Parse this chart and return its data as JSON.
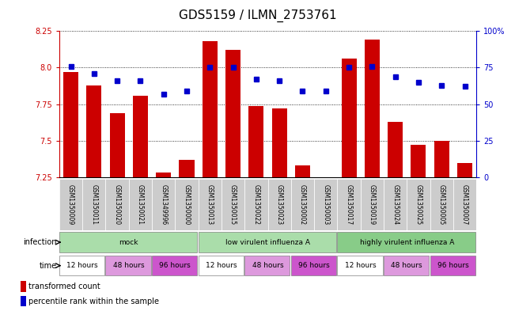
{
  "title": "GDS5159 / ILMN_2753761",
  "samples": [
    "GSM1350009",
    "GSM1350011",
    "GSM1350020",
    "GSM1350021",
    "GSM1349996",
    "GSM1350000",
    "GSM1350013",
    "GSM1350015",
    "GSM1350022",
    "GSM1350023",
    "GSM1350002",
    "GSM1350003",
    "GSM1350017",
    "GSM1350019",
    "GSM1350024",
    "GSM1350025",
    "GSM1350005",
    "GSM1350007"
  ],
  "bar_values": [
    7.97,
    7.88,
    7.69,
    7.81,
    7.28,
    7.37,
    8.18,
    8.12,
    7.74,
    7.72,
    7.33,
    7.25,
    8.06,
    8.19,
    7.63,
    7.47,
    7.5,
    7.35
  ],
  "dot_values": [
    76,
    71,
    66,
    66,
    57,
    59,
    75,
    75,
    67,
    66,
    59,
    59,
    75,
    76,
    69,
    65,
    63,
    62
  ],
  "ylim_left": [
    7.25,
    8.25
  ],
  "ylim_right": [
    0,
    100
  ],
  "yticks_left": [
    7.25,
    7.5,
    7.75,
    8.0,
    8.25
  ],
  "yticks_right": [
    0,
    25,
    50,
    75,
    100
  ],
  "bar_color": "#cc0000",
  "dot_color": "#0000cc",
  "infection_groups": [
    {
      "label": "mock",
      "start": 0,
      "end": 6,
      "color": "#aaddaa"
    },
    {
      "label": "low virulent influenza A",
      "start": 6,
      "end": 12,
      "color": "#aaddaa"
    },
    {
      "label": "highly virulent influenza A",
      "start": 12,
      "end": 18,
      "color": "#88cc88"
    }
  ],
  "time_groups_flat": [
    {
      "label": "12 hours",
      "start": 0,
      "end": 2,
      "color": "#ffffff"
    },
    {
      "label": "48 hours",
      "start": 2,
      "end": 4,
      "color": "#dd99dd"
    },
    {
      "label": "96 hours",
      "start": 4,
      "end": 6,
      "color": "#cc55cc"
    },
    {
      "label": "12 hours",
      "start": 6,
      "end": 8,
      "color": "#ffffff"
    },
    {
      "label": "48 hours",
      "start": 8,
      "end": 10,
      "color": "#dd99dd"
    },
    {
      "label": "96 hours",
      "start": 10,
      "end": 12,
      "color": "#cc55cc"
    },
    {
      "label": "12 hours",
      "start": 12,
      "end": 14,
      "color": "#ffffff"
    },
    {
      "label": "48 hours",
      "start": 14,
      "end": 16,
      "color": "#dd99dd"
    },
    {
      "label": "96 hours",
      "start": 16,
      "end": 18,
      "color": "#cc55cc"
    }
  ],
  "infection_label": "infection",
  "time_label": "time",
  "legend_bar": "transformed count",
  "legend_dot": "percentile rank within the sample",
  "sample_bg_color": "#cccccc",
  "bar_width": 0.65
}
